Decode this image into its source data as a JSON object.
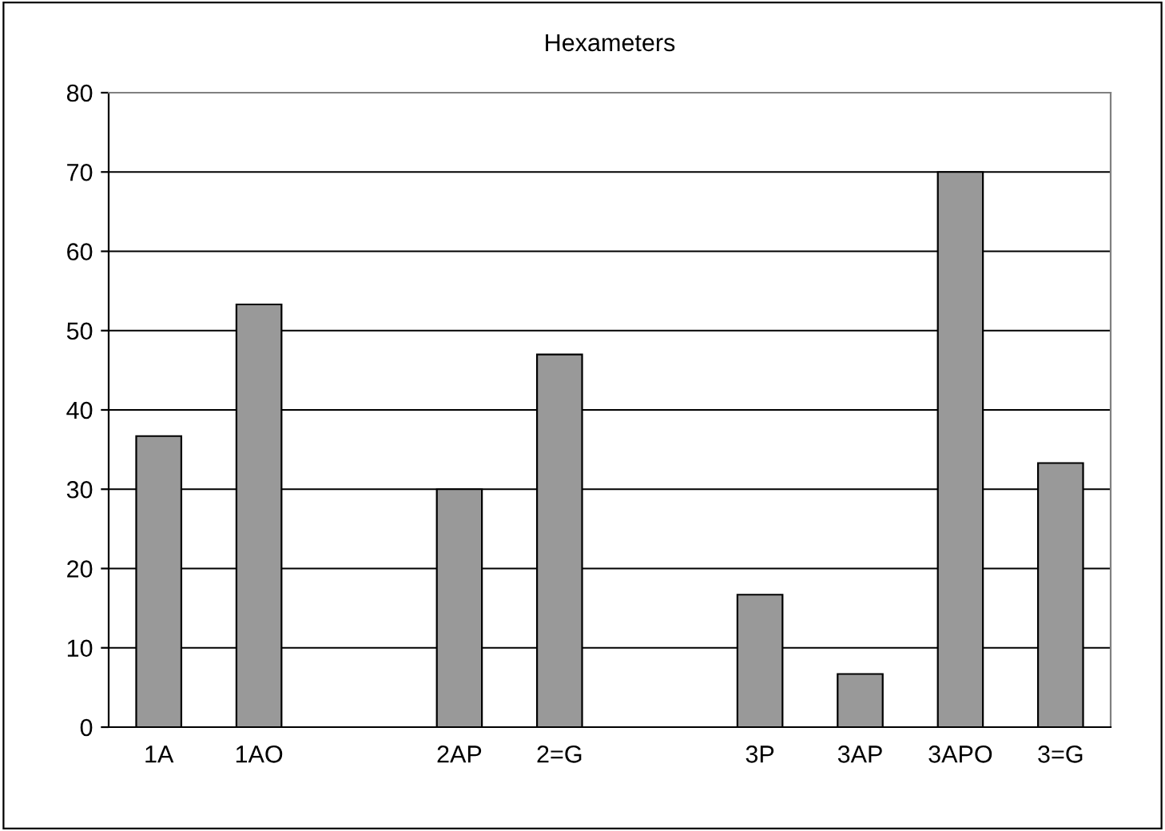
{
  "chart_data": {
    "type": "bar",
    "title": "Hexameters",
    "categories": [
      "1A",
      "1AO",
      null,
      "2AP",
      "2=G",
      null,
      "3P",
      "3AP",
      "3APO",
      "3=G"
    ],
    "values": [
      36.7,
      53.3,
      null,
      30,
      47,
      null,
      16.7,
      6.7,
      70,
      33.3
    ],
    "color": "#999999",
    "ylim": [
      0,
      80
    ],
    "yticks": [
      0,
      10,
      20,
      30,
      40,
      50,
      60,
      70,
      80
    ],
    "grid": "y",
    "legend": false
  }
}
